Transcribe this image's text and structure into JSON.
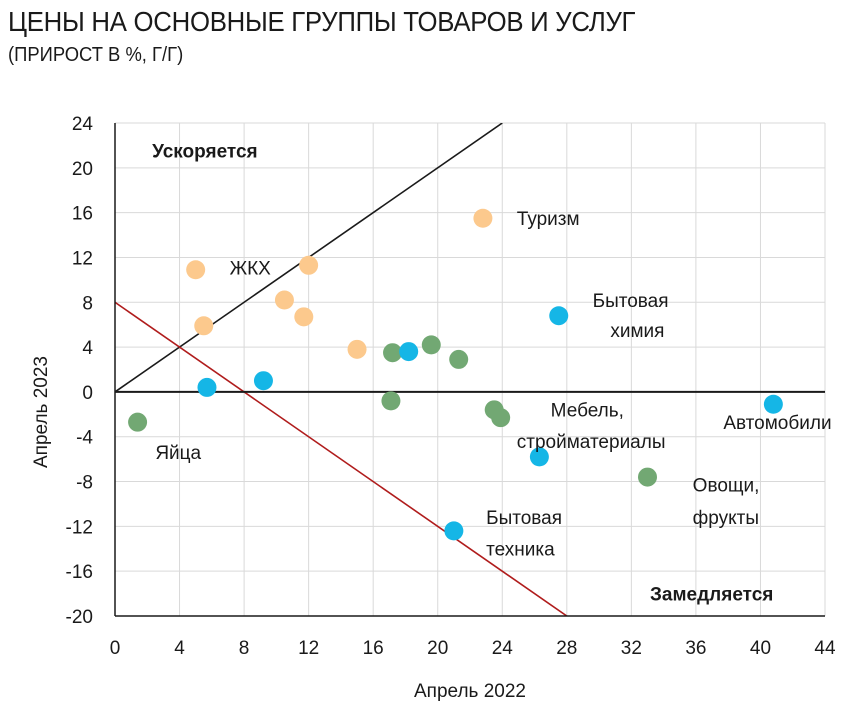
{
  "chart_data": {
    "type": "scatter",
    "title": "ЦЕНЫ НА ОСНОВНЫЕ ГРУППЫ ТОВАРОВ И УСЛУГ",
    "subtitle": "(ПРИРОСТ В %, Г/Г)",
    "xlabel": "Апрель 2022",
    "ylabel": "Апрель 2023",
    "xlim": [
      0,
      44
    ],
    "ylim": [
      -20,
      24
    ],
    "xticks": [
      0,
      4,
      8,
      12,
      16,
      20,
      24,
      28,
      32,
      36,
      40,
      44
    ],
    "yticks": [
      24,
      20,
      16,
      12,
      8,
      4,
      0,
      -4,
      -8,
      -12,
      -16,
      -20
    ],
    "grid": true,
    "colors": {
      "orange": "#fcc98d",
      "green": "#72a873",
      "blue": "#15b6e6",
      "diagonal": "#1a1a1a",
      "redline": "#b01c1c"
    },
    "series": [
      {
        "color": "orange",
        "points": [
          {
            "x": 22.8,
            "y": 15.5
          },
          {
            "x": 5.0,
            "y": 10.9
          },
          {
            "x": 12.0,
            "y": 11.3
          },
          {
            "x": 10.5,
            "y": 8.2
          },
          {
            "x": 11.7,
            "y": 6.7
          },
          {
            "x": 5.5,
            "y": 5.9
          },
          {
            "x": 15.0,
            "y": 3.8
          }
        ]
      },
      {
        "color": "green",
        "points": [
          {
            "x": 19.6,
            "y": 4.2
          },
          {
            "x": 17.2,
            "y": 3.5
          },
          {
            "x": 21.3,
            "y": 2.9
          },
          {
            "x": 17.1,
            "y": -0.8
          },
          {
            "x": 23.5,
            "y": -1.6
          },
          {
            "x": 23.9,
            "y": -2.3
          },
          {
            "x": 1.4,
            "y": -2.7
          },
          {
            "x": 33.0,
            "y": -7.6
          }
        ]
      },
      {
        "color": "blue",
        "points": [
          {
            "x": 27.5,
            "y": 6.8
          },
          {
            "x": 18.2,
            "y": 3.6
          },
          {
            "x": 9.2,
            "y": 1.0
          },
          {
            "x": 5.7,
            "y": 0.4
          },
          {
            "x": 40.8,
            "y": -1.1
          },
          {
            "x": 26.3,
            "y": -5.8
          },
          {
            "x": 21.0,
            "y": -12.4
          }
        ]
      }
    ],
    "reference_lines": [
      {
        "name": "diagonal",
        "from": [
          0,
          0
        ],
        "to": [
          24,
          24
        ]
      },
      {
        "name": "redline",
        "from": [
          0,
          8
        ],
        "to": [
          28,
          -20
        ]
      }
    ],
    "annotations": [
      {
        "text": "Ускоряется",
        "x": 2.3,
        "y": 20.9,
        "bold": true,
        "anchor": "start"
      },
      {
        "text": "Замедляется",
        "x": 40.8,
        "y": -18.6,
        "bold": true,
        "anchor": "end"
      },
      {
        "text": "Туризм",
        "x": 24.9,
        "y": 14.9,
        "bold": false,
        "anchor": "start"
      },
      {
        "text": "ЖКХ",
        "x": 7.1,
        "y": 10.5,
        "bold": false,
        "anchor": "start"
      },
      {
        "text": "Бытовая",
        "x": 29.6,
        "y": 7.6,
        "bold": false,
        "anchor": "start"
      },
      {
        "text": "химия",
        "x": 30.7,
        "y": 4.9,
        "bold": false,
        "anchor": "start"
      },
      {
        "text": "Мебель,",
        "x": 27.0,
        "y": -2.2,
        "bold": false,
        "anchor": "start"
      },
      {
        "text": "стройматериалы",
        "x": 24.9,
        "y": -5.0,
        "bold": false,
        "anchor": "start"
      },
      {
        "text": "Автомобили",
        "x": 37.7,
        "y": -3.3,
        "bold": false,
        "anchor": "start"
      },
      {
        "text": "Яйца",
        "x": 2.5,
        "y": -6.0,
        "bold": false,
        "anchor": "start"
      },
      {
        "text": "Овощи,",
        "x": 35.8,
        "y": -8.9,
        "bold": false,
        "anchor": "start"
      },
      {
        "text": "фрукты",
        "x": 35.8,
        "y": -11.8,
        "bold": false,
        "anchor": "start"
      },
      {
        "text": "Бытовая",
        "x": 23.0,
        "y": -11.8,
        "bold": false,
        "anchor": "start"
      },
      {
        "text": "техника",
        "x": 23.0,
        "y": -14.6,
        "bold": false,
        "anchor": "start"
      }
    ]
  }
}
